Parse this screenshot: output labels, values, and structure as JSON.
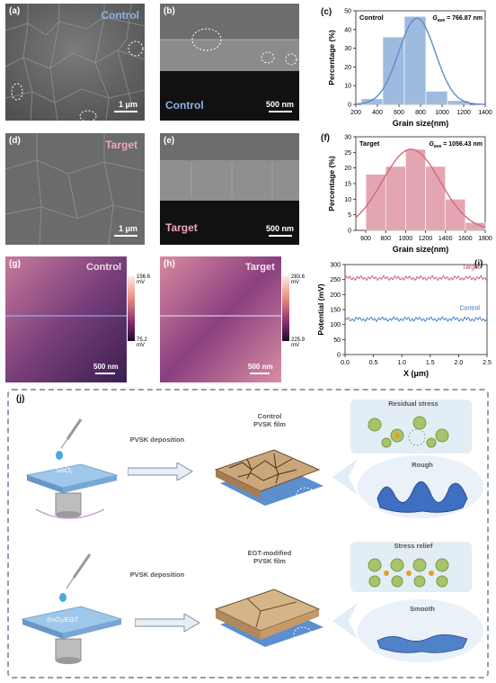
{
  "figure": {
    "panels": {
      "a": {
        "label": "(a)",
        "tag": "Control",
        "scale": "1 μm"
      },
      "b": {
        "label": "(b)",
        "tag": "Control",
        "scale": "500 nm"
      },
      "d": {
        "label": "(d)",
        "tag": "Target",
        "scale": "1 μm"
      },
      "e": {
        "label": "(e)",
        "tag": "Target",
        "scale": "500 nm"
      },
      "g": {
        "label": "(g)",
        "tag": "Control",
        "scale": "500 nm",
        "cb_max": "156.6 mV",
        "cb_min": "75.2 mV"
      },
      "h": {
        "label": "(h)",
        "tag": "Target",
        "scale": "500 nm",
        "cb_max": "283.6 mV",
        "cb_min": "225.9 mV"
      },
      "c": {
        "label": "(c)",
        "tag": "Control",
        "gave_prefix": "G",
        "gave_sub": "ave",
        "gave_value": " = 766.87 nm"
      },
      "f": {
        "label": "(f)",
        "tag": "Target",
        "gave_prefix": "G",
        "gave_sub": "ave",
        "gave_value": " = 1056.43 nm"
      },
      "i": {
        "label": "(i)",
        "series_target": "Target",
        "series_control": "Control"
      },
      "j": {
        "label": "(j)",
        "top": {
          "substrate": "SnO₂",
          "arrow1": "PVSK deposition",
          "film_title_1": "Control",
          "film_title_2": "PVSK film",
          "stress": "Residual stress",
          "surface": "Rough"
        },
        "bottom": {
          "substrate": "SnO₂/EGT",
          "arrow1": "PVSK deposition",
          "film_title_1": "EGT-modified",
          "film_title_2": "PVSK film",
          "stress": "Stress relief",
          "surface": "Smooth"
        }
      }
    }
  },
  "chart_data": [
    {
      "id": "c",
      "type": "bar",
      "categories": [
        350,
        550,
        750,
        950,
        1150
      ],
      "values": [
        3,
        36,
        47,
        7,
        2
      ],
      "xlabel": "Grain size(nm)",
      "ylabel": "Percentage (%)",
      "xlim": [
        200,
        1400
      ],
      "ylim": [
        0,
        50
      ],
      "xticks": [
        200,
        400,
        600,
        800,
        1000,
        1200,
        1400
      ],
      "yticks": [
        0,
        10,
        20,
        30,
        40,
        50
      ],
      "bar_width": 200,
      "color": "#5b8ec9",
      "fit_curve": {
        "mu": 766.87,
        "sigma": 170,
        "peak": 46
      }
    },
    {
      "id": "f",
      "type": "bar",
      "categories": [
        700,
        900,
        1100,
        1300,
        1500,
        1700
      ],
      "values": [
        18,
        20.5,
        26,
        20.5,
        10,
        2.5
      ],
      "xlabel": "Grain size(nm)",
      "ylabel": "Percentage (%)",
      "xlim": [
        500,
        1800
      ],
      "ylim": [
        0,
        30
      ],
      "xticks": [
        600,
        800,
        1000,
        1200,
        1400,
        1600,
        1800
      ],
      "yticks": [
        0,
        5,
        10,
        15,
        20,
        25,
        30
      ],
      "bar_width": 200,
      "color": "#d06b7c",
      "fit_curve": {
        "mu": 1056.43,
        "sigma": 290,
        "peak": 26
      }
    },
    {
      "id": "i",
      "type": "line",
      "xlabel": "X (μm)",
      "ylabel": "Potential (mV)",
      "xlim": [
        0,
        2.5
      ],
      "ylim": [
        0,
        300
      ],
      "xticks": [
        0.0,
        0.5,
        1.0,
        1.5,
        2.0,
        2.5
      ],
      "yticks": [
        0,
        50,
        100,
        150,
        200,
        250,
        300
      ],
      "series": [
        {
          "name": "Target",
          "mean": 255,
          "amplitude": 8,
          "color": "#d0607a"
        },
        {
          "name": "Control",
          "mean": 118,
          "amplitude": 8,
          "color": "#4a86c5"
        }
      ]
    }
  ]
}
